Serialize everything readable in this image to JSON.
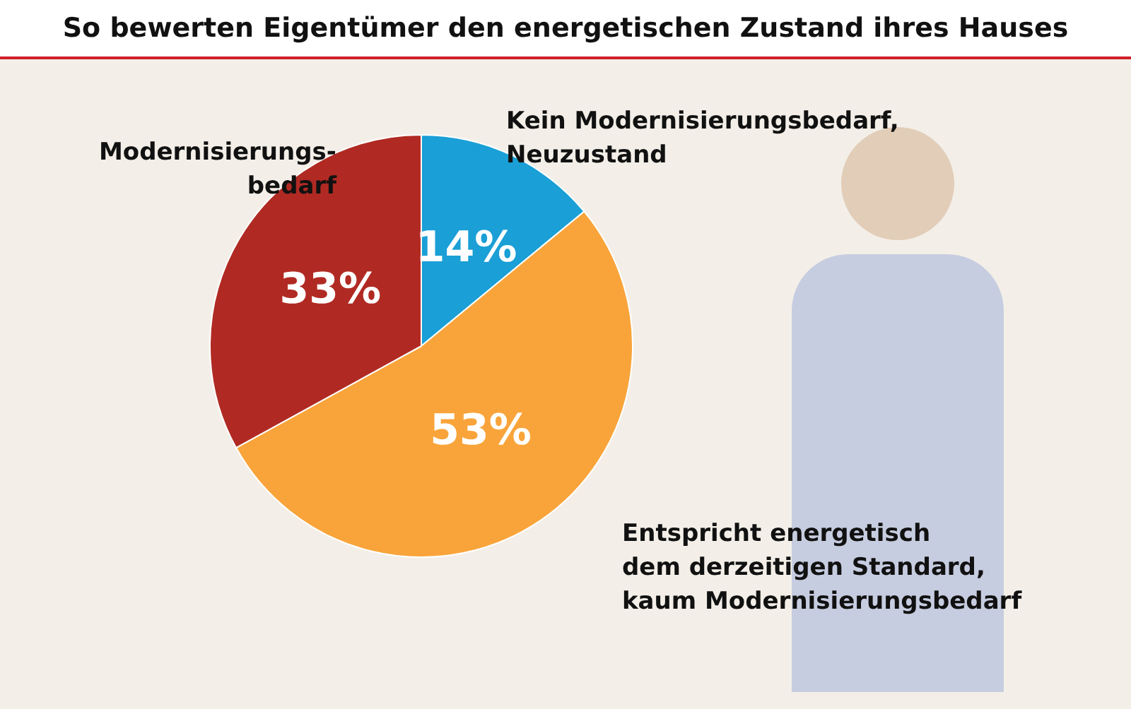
{
  "chart_data": {
    "type": "pie",
    "title": "So bewerten Eigentümer den energetischen Zustand ihres Hauses",
    "categories": [
      "Kein Modernisierungsbedarf,\nNeuzustand",
      "Entspricht energetisch\ndem derzeitigen Standard,\nkaum Modernisierungsbedarf",
      "Modernisierungs-\nbedarf"
    ],
    "values": [
      14,
      53,
      33
    ],
    "colors": [
      "#1a9fd6",
      "#f9a43a",
      "#b02a23"
    ],
    "value_labels": [
      "14%",
      "53%",
      "33%"
    ],
    "legend": false
  }
}
